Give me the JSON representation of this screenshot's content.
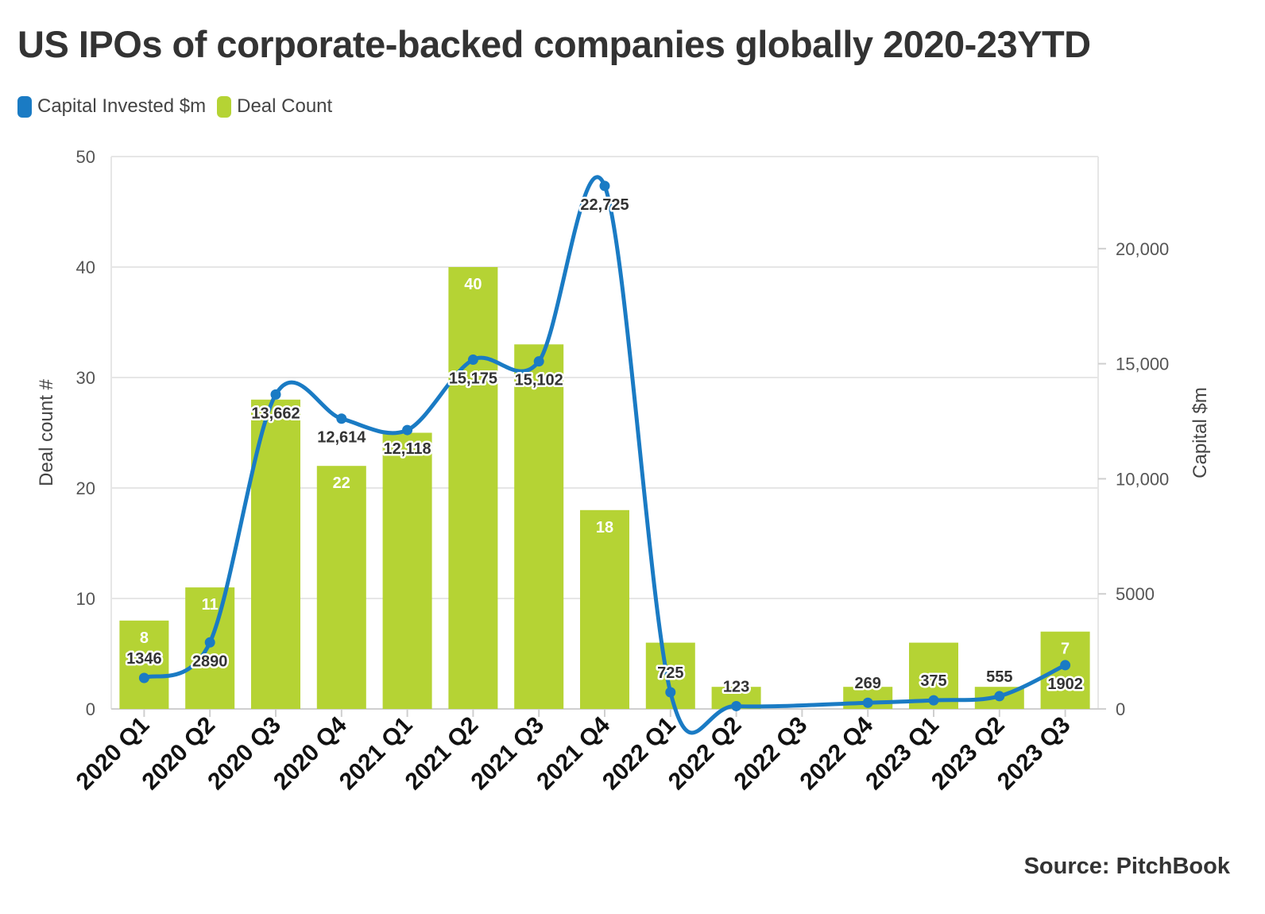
{
  "title": "US IPOs of corporate-backed companies globally 2020-23YTD",
  "source": "Source: PitchBook",
  "colors": {
    "bar": "#b5d334",
    "line": "#1a7bc4",
    "text": "#333333",
    "grid": "#e6e6e6"
  },
  "chart_data": {
    "type": "bar+line",
    "categories": [
      "2020 Q1",
      "2020 Q2",
      "2020 Q3",
      "2020 Q4",
      "2021 Q1",
      "2021 Q2",
      "2021 Q3",
      "2021 Q4",
      "2022 Q1",
      "2022 Q2",
      "2022 Q3",
      "2022 Q4",
      "2023 Q1",
      "2023 Q2",
      "2023 Q3"
    ],
    "series": [
      {
        "name": "Capital Invested $m",
        "type": "line",
        "axis": "right",
        "color": "#1a7bc4",
        "values": [
          1346,
          2890,
          13662,
          12614,
          12118,
          15175,
          15102,
          22725,
          725,
          123,
          null,
          269,
          375,
          555,
          1902
        ],
        "labels": [
          "1346",
          "2890",
          "13,662",
          "12,614",
          "12,118",
          "15,175",
          "15,102",
          "22,725",
          "725",
          "123",
          "",
          "269",
          "375",
          "555",
          "1902"
        ]
      },
      {
        "name": "Deal Count",
        "type": "bar",
        "axis": "left",
        "color": "#b5d334",
        "values": [
          8,
          11,
          28,
          22,
          25,
          40,
          33,
          18,
          6,
          2,
          0,
          2,
          6,
          2,
          7
        ],
        "labels": [
          "8",
          "11",
          "",
          "22",
          "",
          "40",
          "",
          "18",
          "",
          "",
          "",
          "",
          "",
          "",
          "7"
        ]
      }
    ],
    "y_left": {
      "label": "Deal count #",
      "ylim": [
        0,
        50
      ],
      "ticks": [
        "0",
        "10",
        "20",
        "30",
        "40",
        "50"
      ]
    },
    "y_right": {
      "label": "Capital $m",
      "ylim": [
        0,
        24000
      ],
      "ticks": [
        "0",
        "5000",
        "10,000",
        "15,000",
        "20,000"
      ]
    },
    "grid": true,
    "legend_position": "top-left"
  }
}
